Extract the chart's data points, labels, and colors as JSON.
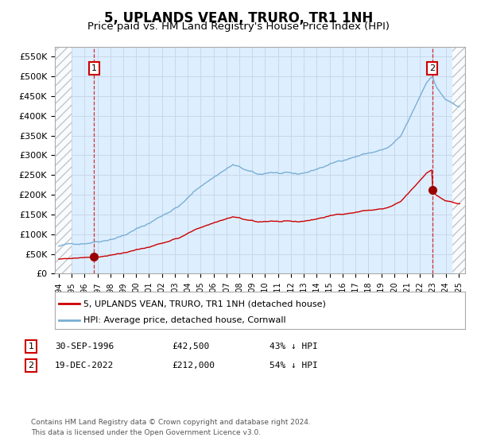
{
  "title": "5, UPLANDS VEAN, TRURO, TR1 1NH",
  "subtitle": "Price paid vs. HM Land Registry's House Price Index (HPI)",
  "title_fontsize": 12,
  "subtitle_fontsize": 9.5,
  "ylabel_ticks": [
    "£0",
    "£50K",
    "£100K",
    "£150K",
    "£200K",
    "£250K",
    "£300K",
    "£350K",
    "£400K",
    "£450K",
    "£500K",
    "£550K"
  ],
  "ytick_values": [
    0,
    50000,
    100000,
    150000,
    200000,
    250000,
    300000,
    350000,
    400000,
    450000,
    500000,
    550000
  ],
  "xlim": [
    1993.7,
    2025.5
  ],
  "ylim": [
    0,
    575000
  ],
  "sale1_year": 1996.75,
  "sale1_price": 42500,
  "sale2_year": 2022.96,
  "sale2_price": 212000,
  "legend_line1": "5, UPLANDS VEAN, TRURO, TR1 1NH (detached house)",
  "legend_line2": "HPI: Average price, detached house, Cornwall",
  "line_color_red": "#cc0000",
  "line_color_blue": "#7aafd4",
  "bg_color": "#ddeeff",
  "grid_color": "#c8d8e8",
  "hatch_color": "#bbbbbb",
  "footer": "Contains HM Land Registry data © Crown copyright and database right 2024.\nThis data is licensed under the Open Government Licence v3.0."
}
